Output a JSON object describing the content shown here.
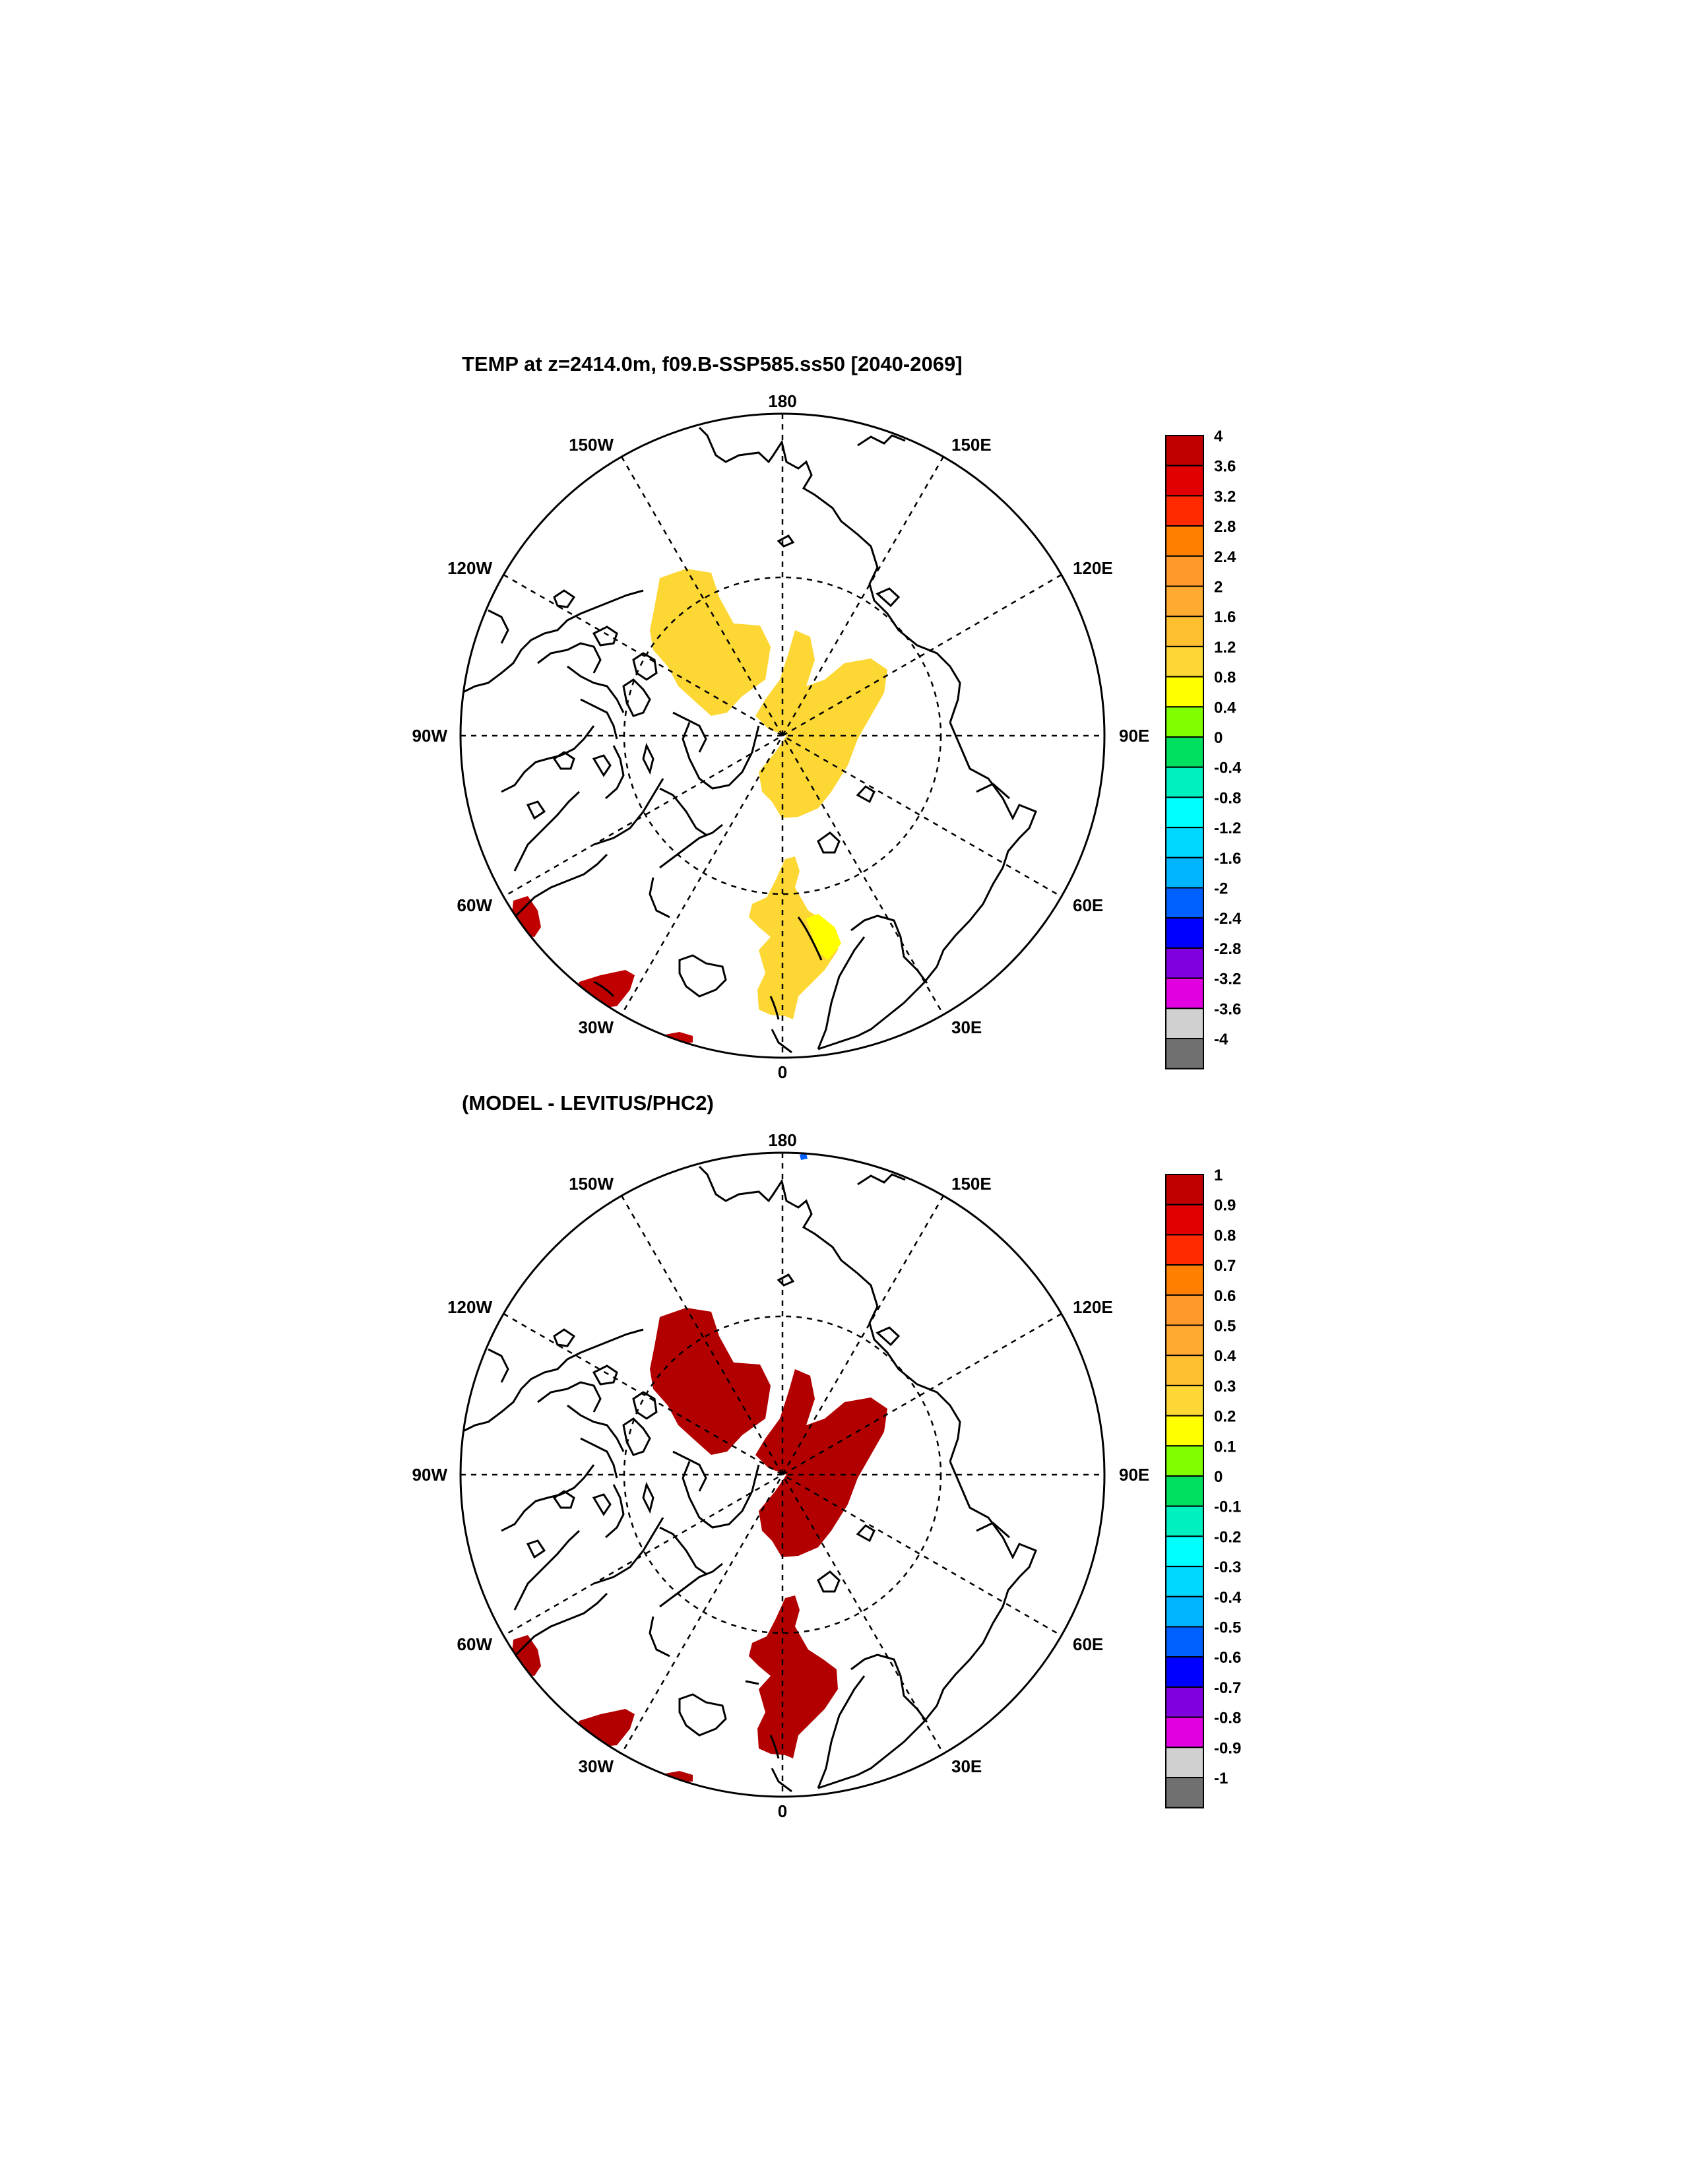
{
  "panels": [
    {
      "title": "TEMP at z=2414.0m, f09.B-SSP585.ss50 [2040-2069]",
      "longitude_labels": [
        "180",
        "150E",
        "120E",
        "90E",
        "60E",
        "30E",
        "0",
        "30W",
        "60W",
        "90W",
        "120W",
        "150W"
      ],
      "colorbar": {
        "labels": [
          "4",
          "3.6",
          "3.2",
          "2.8",
          "2.4",
          "2",
          "1.6",
          "1.2",
          "0.8",
          "0.4",
          "0",
          "-0.4",
          "-0.8",
          "-1.2",
          "-1.6",
          "-2",
          "-2.4",
          "-2.8",
          "-3.2",
          "-3.6",
          "-4"
        ],
        "colors": [
          "#c00000",
          "#e00000",
          "#ff2a00",
          "#ff7f00",
          "#ff9a2a",
          "#ffaa30",
          "#ffc030",
          "#fdd835",
          "#ffff00",
          "#80ff00",
          "#00e060",
          "#00f0c0",
          "#00ffff",
          "#00d8ff",
          "#00b4ff",
          "#0060ff",
          "#0000ff",
          "#8000e0",
          "#e000e0",
          "#d0d0d0",
          "#707070"
        ]
      },
      "field": {
        "regions": [
          {
            "name": "canada-basin-anomaly",
            "color": "#fdd835"
          },
          {
            "name": "pole-anomaly",
            "color": "#fdd835"
          },
          {
            "name": "fram-strait-anomaly",
            "color": "#fdd835"
          },
          {
            "name": "fram-strait-patch",
            "color": "#ffff00"
          },
          {
            "name": "labrador-sea-anomaly",
            "color": "#c00000"
          },
          {
            "name": "greenland-sea-anomaly",
            "color": "#c00000"
          },
          {
            "name": "iceland-anomaly",
            "color": "#c00000"
          }
        ]
      }
    },
    {
      "title": "(MODEL - LEVITUS/PHC2)",
      "longitude_labels": [
        "180",
        "150E",
        "120E",
        "90E",
        "60E",
        "30E",
        "0",
        "30W",
        "60W",
        "90W",
        "120W",
        "150W"
      ],
      "colorbar": {
        "labels": [
          "1",
          "0.9",
          "0.8",
          "0.7",
          "0.6",
          "0.5",
          "0.4",
          "0.3",
          "0.2",
          "0.1",
          "0",
          "-0.1",
          "-0.2",
          "-0.3",
          "-0.4",
          "-0.5",
          "-0.6",
          "-0.7",
          "-0.8",
          "-0.9",
          "-1"
        ],
        "colors": [
          "#c00000",
          "#e00000",
          "#ff2a00",
          "#ff7f00",
          "#ff9a2a",
          "#ffaa30",
          "#ffc030",
          "#fdd835",
          "#ffff00",
          "#80ff00",
          "#00e060",
          "#00f0c0",
          "#00ffff",
          "#00d8ff",
          "#00b4ff",
          "#0060ff",
          "#0000ff",
          "#8000e0",
          "#e000e0",
          "#d0d0d0",
          "#707070"
        ]
      },
      "field": {
        "regions": [
          {
            "name": "canada-basin-anomaly",
            "color": "#b20000"
          },
          {
            "name": "pole-anomaly",
            "color": "#b20000"
          },
          {
            "name": "fram-strait-anomaly",
            "color": "#b20000"
          },
          {
            "name": "labrador-sea-anomaly",
            "color": "#b20000"
          },
          {
            "name": "greenland-sea-anomaly",
            "color": "#b20000"
          },
          {
            "name": "iceland-anomaly",
            "color": "#b20000"
          }
        ]
      }
    }
  ]
}
